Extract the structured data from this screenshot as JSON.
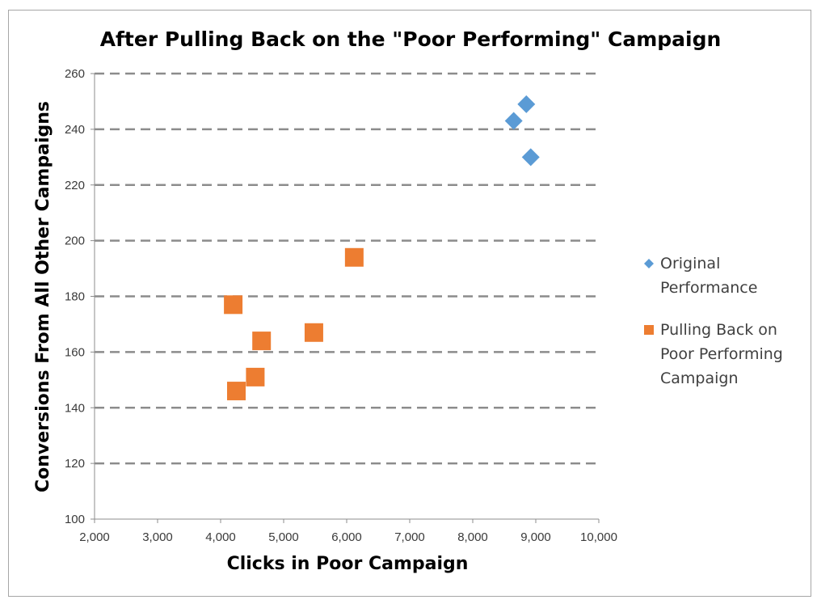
{
  "chart_data": {
    "type": "scatter",
    "title": "After Pulling Back on the \"Poor Performing\" Campaign",
    "xlabel": "Clicks in Poor Campaign",
    "ylabel": "Conversions From All Other Campaigns",
    "xlim": [
      2000,
      10000
    ],
    "ylim": [
      100,
      260
    ],
    "x_ticks": [
      "2,000",
      "3,000",
      "4,000",
      "5,000",
      "6,000",
      "7,000",
      "8,000",
      "9,000",
      "10,000"
    ],
    "y_ticks": [
      "100",
      "120",
      "140",
      "160",
      "180",
      "200",
      "220",
      "240",
      "260"
    ],
    "grid": "horizontal dashed",
    "legend_position": "right",
    "series": [
      {
        "name": "Original Performance",
        "legend_lines": [
          "Original",
          "Performance"
        ],
        "marker": "diamond",
        "color": "#5b9bd5",
        "points": [
          {
            "x": 8850,
            "y": 249
          },
          {
            "x": 8650,
            "y": 243
          },
          {
            "x": 8920,
            "y": 230
          }
        ]
      },
      {
        "name": "Pulling Back on Poor Performing Campaign",
        "legend_lines": [
          "Pulling Back on",
          "Poor Performing",
          "Campaign"
        ],
        "marker": "square",
        "color": "#ed7d31",
        "points": [
          {
            "x": 6120,
            "y": 194
          },
          {
            "x": 4200,
            "y": 177
          },
          {
            "x": 5480,
            "y": 167
          },
          {
            "x": 4650,
            "y": 164
          },
          {
            "x": 4550,
            "y": 151
          },
          {
            "x": 4250,
            "y": 146
          }
        ]
      }
    ]
  }
}
